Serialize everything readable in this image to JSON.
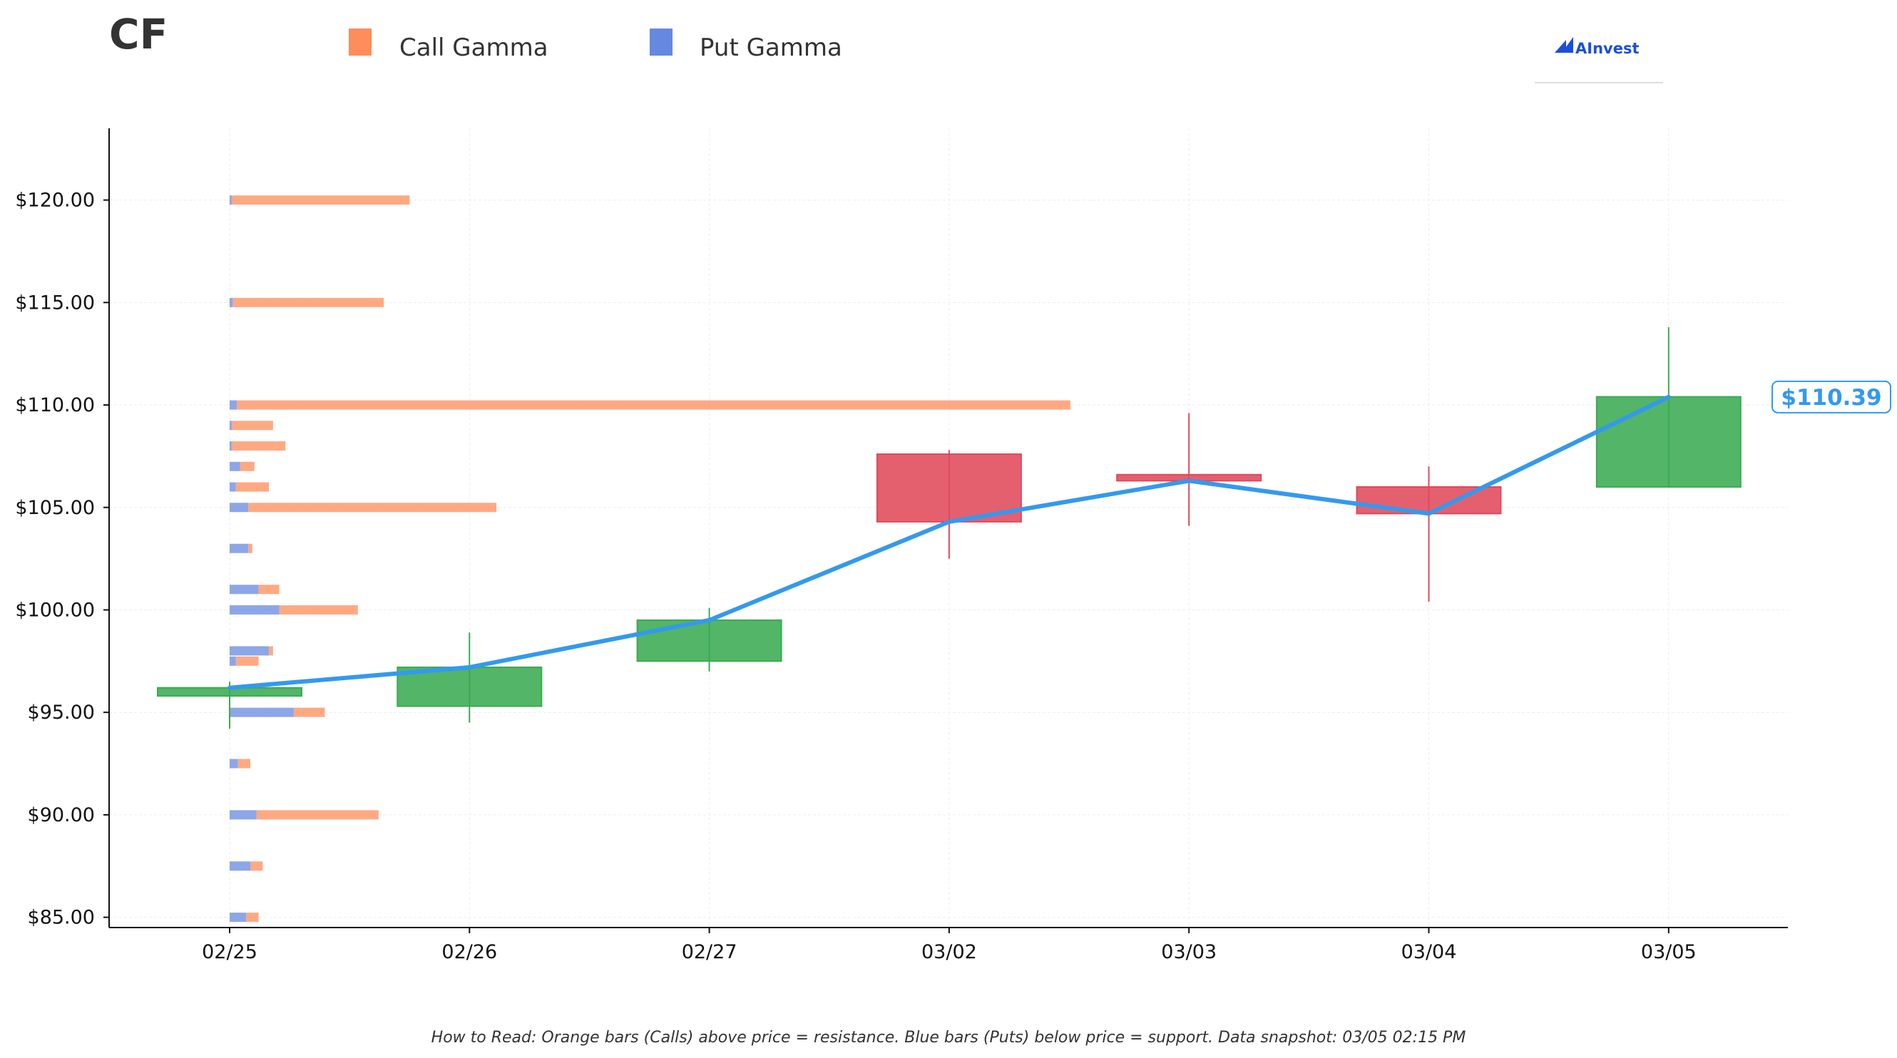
{
  "header": {
    "ticker": "CF",
    "logo_text": "AInvest"
  },
  "legend": [
    {
      "label": "Call Gamma",
      "color": "#ff8c5a"
    },
    {
      "label": "Put Gamma",
      "color": "#6688e0"
    }
  ],
  "footer": {
    "note": "How to Read: Orange bars (Calls) above price = resistance. Blue bars (Puts) below price = support. Data snapshot: 03/05 02:15 PM"
  },
  "chart_data": {
    "type": "candlestick",
    "x_categories": [
      "02/25",
      "02/26",
      "02/27",
      "03/02",
      "03/03",
      "03/04",
      "03/05"
    ],
    "y_ticks": [
      85,
      90,
      95,
      100,
      105,
      110,
      115,
      120
    ],
    "y_tick_labels": [
      "$85.00",
      "$90.00",
      "$95.00",
      "$100.00",
      "$105.00",
      "$110.00",
      "$115.00",
      "$120.00"
    ],
    "ylim": [
      84.5,
      123.5
    ],
    "grid": true,
    "legend_position": "top",
    "candles": [
      {
        "date": "02/25",
        "open": 95.8,
        "high": 96.5,
        "low": 94.2,
        "close": 96.2
      },
      {
        "date": "02/26",
        "open": 95.3,
        "high": 98.9,
        "low": 94.5,
        "close": 97.2
      },
      {
        "date": "02/27",
        "open": 97.5,
        "high": 100.1,
        "low": 97.0,
        "close": 99.5
      },
      {
        "date": "03/02",
        "open": 107.6,
        "high": 107.8,
        "low": 102.5,
        "close": 104.3
      },
      {
        "date": "03/03",
        "open": 106.6,
        "high": 109.6,
        "low": 104.1,
        "close": 106.3
      },
      {
        "date": "03/04",
        "open": 106.0,
        "high": 107.0,
        "low": 100.4,
        "close": 104.7
      },
      {
        "date": "03/05",
        "open": 106.0,
        "high": 113.8,
        "low": 106.0,
        "close": 110.4
      }
    ],
    "close_line": [
      96.2,
      97.2,
      99.5,
      104.3,
      106.3,
      104.7,
      110.39
    ],
    "last_price_label": "$110.39",
    "colors": {
      "up": "#3aab52",
      "down": "#e04a5a",
      "line": "#3399ee"
    },
    "gamma_profile": [
      {
        "strike": 120.0,
        "put": 0.1,
        "call": 8.6
      },
      {
        "strike": 115.0,
        "put": 0.15,
        "call": 7.3
      },
      {
        "strike": 110.0,
        "put": 0.35,
        "call": 40.3
      },
      {
        "strike": 109.0,
        "put": 0.1,
        "call": 2.0
      },
      {
        "strike": 108.0,
        "put": 0.1,
        "call": 2.6
      },
      {
        "strike": 107.0,
        "put": 0.5,
        "call": 0.7
      },
      {
        "strike": 106.0,
        "put": 0.3,
        "call": 1.6
      },
      {
        "strike": 105.0,
        "put": 0.9,
        "call": 12.0
      },
      {
        "strike": 103.0,
        "put": 0.9,
        "call": 0.2
      },
      {
        "strike": 101.0,
        "put": 1.4,
        "call": 1.0
      },
      {
        "strike": 100.0,
        "put": 2.4,
        "call": 3.8
      },
      {
        "strike": 98.0,
        "put": 1.9,
        "call": 0.2
      },
      {
        "strike": 97.5,
        "put": 0.3,
        "call": 1.1
      },
      {
        "strike": 95.0,
        "put": 3.1,
        "call": 1.5
      },
      {
        "strike": 92.5,
        "put": 0.4,
        "call": 0.6
      },
      {
        "strike": 90.0,
        "put": 1.3,
        "call": 5.9
      },
      {
        "strike": 87.5,
        "put": 1.0,
        "call": 0.6
      },
      {
        "strike": 85.0,
        "put": 0.8,
        "call": 0.6
      }
    ]
  }
}
